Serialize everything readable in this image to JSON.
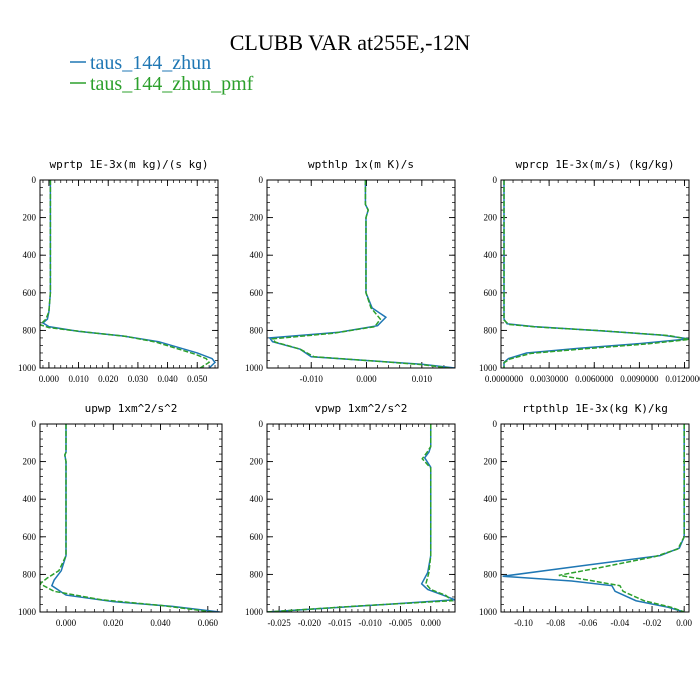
{
  "figure": {
    "title": "CLUBB VAR at255E,-12N",
    "legend": [
      {
        "label": "taus_144_zhun",
        "color": "#1f77b4",
        "style": "solid"
      },
      {
        "label": "taus_144_zhun_pmf",
        "color": "#2ca02c",
        "style": "dashed"
      }
    ]
  },
  "chart_data": [
    {
      "type": "line",
      "title": "wprtp  1E-3x(m kg)/(s kg)",
      "xlim": [
        -0.003,
        0.057
      ],
      "ylim": [
        1000,
        0
      ],
      "xticks": [
        0.0,
        0.01,
        0.02,
        0.03,
        0.04,
        0.05
      ],
      "xtick_labels": [
        "0.000",
        "0.010",
        "0.020",
        "0.030",
        "0.040",
        "0.050"
      ],
      "yticks": [
        0,
        200,
        400,
        600,
        800,
        1000
      ],
      "ytick_labels": [
        "0",
        "200",
        "400",
        "600",
        "800",
        "1000"
      ],
      "series": [
        {
          "name": "taus_144_zhun",
          "color": "#1f77b4",
          "style": "solid",
          "points": [
            [
              0.0005,
              0
            ],
            [
              0.0005,
              300
            ],
            [
              0.0005,
              600
            ],
            [
              0.0,
              700
            ],
            [
              -0.0005,
              740
            ],
            [
              -0.002,
              760
            ],
            [
              0.0,
              780
            ],
            [
              0.01,
              805
            ],
            [
              0.025,
              830
            ],
            [
              0.037,
              860
            ],
            [
              0.05,
              920
            ],
            [
              0.055,
              950
            ],
            [
              0.056,
              970
            ],
            [
              0.054,
              1000
            ]
          ]
        },
        {
          "name": "taus_144_zhun_pmf",
          "color": "#2ca02c",
          "style": "dashed",
          "points": [
            [
              0.0005,
              0
            ],
            [
              0.0005,
              300
            ],
            [
              0.0005,
              600
            ],
            [
              0.0,
              700
            ],
            [
              -0.001,
              740
            ],
            [
              -0.003,
              770
            ],
            [
              0.0,
              785
            ],
            [
              0.012,
              808
            ],
            [
              0.026,
              832
            ],
            [
              0.036,
              862
            ],
            [
              0.049,
              925
            ],
            [
              0.053,
              950
            ],
            [
              0.054,
              970
            ],
            [
              0.051,
              1000
            ]
          ]
        }
      ]
    },
    {
      "type": "line",
      "title": "wpthlp  1x(m K)/s",
      "xlim": [
        -0.018,
        0.016
      ],
      "ylim": [
        1000,
        0
      ],
      "xticks": [
        -0.01,
        0.0,
        0.01
      ],
      "xtick_labels": [
        "-0.010",
        "0.000",
        "0.010"
      ],
      "yticks": [
        0,
        200,
        400,
        600,
        800,
        1000
      ],
      "ytick_labels": [
        "0",
        "200",
        "400",
        "600",
        "800",
        "1000"
      ],
      "series": [
        {
          "name": "taus_144_zhun",
          "color": "#1f77b4",
          "style": "solid",
          "points": [
            [
              -0.0002,
              0
            ],
            [
              -0.0002,
              130
            ],
            [
              0.0003,
              160
            ],
            [
              -0.0001,
              200
            ],
            [
              -0.0001,
              600
            ],
            [
              0.001,
              680
            ],
            [
              0.0035,
              730
            ],
            [
              0.002,
              775
            ],
            [
              -0.005,
              810
            ],
            [
              -0.0175,
              840
            ],
            [
              -0.017,
              860
            ],
            [
              -0.012,
              900
            ],
            [
              -0.01,
              940
            ],
            [
              0.0,
              960
            ],
            [
              0.01,
              980
            ],
            [
              0.016,
              1000
            ]
          ]
        },
        {
          "name": "taus_144_zhun_pmf",
          "color": "#2ca02c",
          "style": "dashed",
          "points": [
            [
              -0.0002,
              0
            ],
            [
              -0.0002,
              130
            ],
            [
              0.0003,
              160
            ],
            [
              -0.0001,
              200
            ],
            [
              -0.0001,
              600
            ],
            [
              0.0008,
              680
            ],
            [
              0.0025,
              740
            ],
            [
              0.0015,
              780
            ],
            [
              -0.006,
              815
            ],
            [
              -0.017,
              845
            ],
            [
              -0.0165,
              862
            ],
            [
              -0.012,
              900
            ],
            [
              -0.0095,
              940
            ],
            [
              0.0,
              960
            ],
            [
              0.01,
              982
            ],
            [
              0.015,
              1000
            ]
          ]
        }
      ]
    },
    {
      "type": "line",
      "title": "wprcp  1E-3x(m/s) (kg/kg)",
      "xlim": [
        -0.0002,
        0.0123
      ],
      "ylim": [
        1000,
        0
      ],
      "xticks": [
        0.0,
        0.003,
        0.006,
        0.009,
        0.012
      ],
      "xtick_labels": [
        "0.0000000",
        "0.0030000",
        "0.0060000",
        "0.0090000",
        "0.0120000"
      ],
      "yticks": [
        0,
        200,
        400,
        600,
        800,
        1000
      ],
      "ytick_labels": [
        "0",
        "200",
        "400",
        "600",
        "800",
        "1000"
      ],
      "series": [
        {
          "name": "taus_144_zhun",
          "color": "#1f77b4",
          "style": "solid",
          "points": [
            [
              0.0,
              0
            ],
            [
              0.0,
              740
            ],
            [
              0.0002,
              765
            ],
            [
              0.002,
              780
            ],
            [
              0.006,
              800
            ],
            [
              0.0105,
              825
            ],
            [
              0.0123,
              845
            ],
            [
              0.009,
              870
            ],
            [
              0.005,
              895
            ],
            [
              0.0015,
              920
            ],
            [
              0.0003,
              950
            ],
            [
              0.0,
              970
            ],
            [
              0.0,
              1000
            ]
          ]
        },
        {
          "name": "taus_144_zhun_pmf",
          "color": "#2ca02c",
          "style": "dashed",
          "points": [
            [
              0.0,
              0
            ],
            [
              0.0,
              745
            ],
            [
              0.0003,
              768
            ],
            [
              0.0022,
              782
            ],
            [
              0.0065,
              802
            ],
            [
              0.011,
              828
            ],
            [
              0.0123,
              848
            ],
            [
              0.0095,
              872
            ],
            [
              0.0055,
              897
            ],
            [
              0.0018,
              922
            ],
            [
              0.0004,
              952
            ],
            [
              0.0,
              972
            ],
            [
              0.0,
              1000
            ]
          ]
        }
      ]
    },
    {
      "type": "line",
      "title": "upwp  1xm^2/s^2",
      "xlim": [
        -0.011,
        0.066
      ],
      "ylim": [
        1000,
        0
      ],
      "xticks": [
        0.0,
        0.02,
        0.04,
        0.06
      ],
      "xtick_labels": [
        "0.000",
        "0.020",
        "0.040",
        "0.060"
      ],
      "yticks": [
        0,
        200,
        400,
        600,
        800,
        1000
      ],
      "ytick_labels": [
        "0",
        "200",
        "400",
        "600",
        "800",
        "1000"
      ],
      "series": [
        {
          "name": "taus_144_zhun",
          "color": "#1f77b4",
          "style": "solid",
          "points": [
            [
              0.0,
              0
            ],
            [
              0.0,
              150
            ],
            [
              -0.0005,
              165
            ],
            [
              0.0,
              200
            ],
            [
              0.0,
              700
            ],
            [
              -0.002,
              780
            ],
            [
              -0.005,
              830
            ],
            [
              -0.006,
              860
            ],
            [
              0.0,
              910
            ],
            [
              0.02,
              945
            ],
            [
              0.045,
              970
            ],
            [
              0.065,
              1000
            ]
          ]
        },
        {
          "name": "taus_144_zhun_pmf",
          "color": "#2ca02c",
          "style": "dashed",
          "points": [
            [
              0.0,
              0
            ],
            [
              0.0,
              150
            ],
            [
              -0.0005,
              165
            ],
            [
              0.0,
              200
            ],
            [
              0.0,
              700
            ],
            [
              -0.003,
              780
            ],
            [
              -0.008,
              820
            ],
            [
              -0.011,
              850
            ],
            [
              -0.005,
              890
            ],
            [
              0.015,
              935
            ],
            [
              0.04,
              965
            ],
            [
              0.062,
              1000
            ]
          ]
        }
      ]
    },
    {
      "type": "line",
      "title": "vpwp  1xm^2/s^2",
      "xlim": [
        -0.027,
        0.004
      ],
      "ylim": [
        1000,
        0
      ],
      "xticks": [
        -0.025,
        -0.02,
        -0.015,
        -0.01,
        -0.005,
        0.0
      ],
      "xtick_labels": [
        "-0.025",
        "-0.020",
        "-0.015",
        "-0.010",
        "-0.005",
        "0.000"
      ],
      "yticks": [
        0,
        200,
        400,
        600,
        800,
        1000
      ],
      "ytick_labels": [
        "0",
        "200",
        "400",
        "600",
        "800",
        "1000"
      ],
      "series": [
        {
          "name": "taus_144_zhun",
          "color": "#1f77b4",
          "style": "solid",
          "points": [
            [
              0.0,
              0
            ],
            [
              0.0,
              120
            ],
            [
              -0.0003,
              150
            ],
            [
              -0.001,
              180
            ],
            [
              0.0,
              230
            ],
            [
              0.0,
              700
            ],
            [
              -0.0005,
              790
            ],
            [
              -0.0015,
              850
            ],
            [
              -0.0005,
              880
            ],
            [
              0.002,
              910
            ],
            [
              0.004,
              935
            ],
            [
              -0.01,
              965
            ],
            [
              -0.027,
              1000
            ]
          ]
        },
        {
          "name": "taus_144_zhun_pmf",
          "color": "#2ca02c",
          "style": "dashed",
          "points": [
            [
              0.0,
              0
            ],
            [
              0.0,
              120
            ],
            [
              -0.0006,
              150
            ],
            [
              -0.0014,
              185
            ],
            [
              0.0,
              235
            ],
            [
              0.0,
              700
            ],
            [
              -0.0003,
              790
            ],
            [
              -0.0008,
              850
            ],
            [
              0.0,
              880
            ],
            [
              0.0025,
              912
            ],
            [
              0.0035,
              940
            ],
            [
              -0.012,
              968
            ],
            [
              -0.027,
              1000
            ]
          ]
        }
      ]
    },
    {
      "type": "line",
      "title": "rtpthlp  1E-3x(kg K)/kg",
      "xlim": [
        -0.114,
        0.003
      ],
      "ylim": [
        1000,
        0
      ],
      "xticks": [
        -0.1,
        -0.08,
        -0.06,
        -0.04,
        -0.02,
        0.0
      ],
      "xtick_labels": [
        "-0.10",
        "-0.08",
        "-0.06",
        "-0.04",
        "-0.02",
        "0.00"
      ],
      "yticks": [
        0,
        200,
        400,
        600,
        800,
        1000
      ],
      "ytick_labels": [
        "0",
        "200",
        "400",
        "600",
        "800",
        "1000"
      ],
      "series": [
        {
          "name": "taus_144_zhun",
          "color": "#1f77b4",
          "style": "solid",
          "points": [
            [
              0.0,
              0
            ],
            [
              0.0,
              600
            ],
            [
              -0.003,
              660
            ],
            [
              -0.015,
              700
            ],
            [
              -0.06,
              750
            ],
            [
              -0.113,
              810
            ],
            [
              -0.07,
              835
            ],
            [
              -0.045,
              860
            ],
            [
              -0.043,
              890
            ],
            [
              -0.03,
              940
            ],
            [
              -0.01,
              975
            ],
            [
              0.0,
              1000
            ]
          ]
        },
        {
          "name": "taus_144_zhun_pmf",
          "color": "#2ca02c",
          "style": "dashed",
          "points": [
            [
              0.0,
              0
            ],
            [
              0.0,
              600
            ],
            [
              -0.004,
              665
            ],
            [
              -0.018,
              705
            ],
            [
              -0.05,
              760
            ],
            [
              -0.078,
              805
            ],
            [
              -0.06,
              830
            ],
            [
              -0.04,
              860
            ],
            [
              -0.038,
              890
            ],
            [
              -0.025,
              940
            ],
            [
              -0.008,
              975
            ],
            [
              0.0,
              1000
            ]
          ]
        }
      ]
    }
  ]
}
